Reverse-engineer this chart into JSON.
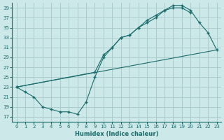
{
  "xlabel": "Humidex (Indice chaleur)",
  "bg_color": "#cce8e8",
  "grid_color": "#aacccc",
  "line_color": "#1a6b6b",
  "xlim": [
    -0.5,
    23.5
  ],
  "ylim": [
    16,
    40
  ],
  "xticks": [
    0,
    1,
    2,
    3,
    4,
    5,
    6,
    7,
    8,
    9,
    10,
    11,
    12,
    13,
    14,
    15,
    16,
    17,
    18,
    19,
    20,
    21,
    22,
    23
  ],
  "yticks": [
    17,
    19,
    21,
    23,
    25,
    27,
    29,
    31,
    33,
    35,
    37,
    39
  ],
  "line1_x": [
    0,
    1,
    2,
    3,
    4,
    5,
    6,
    7,
    8,
    9,
    10,
    11,
    12,
    13,
    14,
    15,
    16,
    17,
    18,
    19,
    20
  ],
  "line1_y": [
    23,
    22,
    21,
    19,
    18.5,
    18,
    18,
    17.5,
    20,
    25,
    29,
    31,
    33,
    33.5,
    35,
    36,
    37,
    38.5,
    39,
    39,
    38
  ],
  "line2_x": [
    0,
    9,
    10,
    11,
    12,
    13,
    14,
    15,
    16,
    17,
    18,
    19,
    20,
    21,
    22,
    23
  ],
  "line2_y": [
    23,
    26,
    29.5,
    31,
    33,
    33.5,
    35,
    36.5,
    37.5,
    38.5,
    39.5,
    39.5,
    38.5,
    36,
    34,
    30.5
  ],
  "line3_x": [
    0,
    23
  ],
  "line3_y": [
    23,
    30.5
  ]
}
